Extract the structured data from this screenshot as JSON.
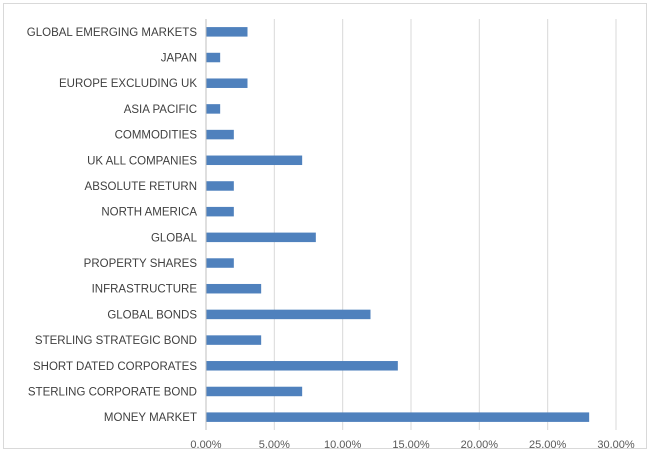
{
  "chart_data": {
    "type": "bar",
    "orientation": "horizontal",
    "title": "",
    "xlabel": "",
    "ylabel": "",
    "categories": [
      "GLOBAL  EMERGING MARKETS",
      "JAPAN",
      "EUROPE EXCLUDING UK",
      "ASIA PACIFIC",
      "COMMODITIES",
      "UK ALL COMPANIES",
      "ABSOLUTE RETURN",
      "NORTH AMERICA",
      "GLOBAL",
      "PROPERTY SHARES",
      "INFRASTRUCTURE",
      "GLOBAL BONDS",
      "STERLING STRATEGIC BOND",
      "SHORT DATED CORPORATES",
      "STERLING CORPORATE BOND",
      "MONEY MARKET"
    ],
    "values": [
      0.03,
      0.01,
      0.03,
      0.01,
      0.02,
      0.07,
      0.02,
      0.02,
      0.08,
      0.02,
      0.04,
      0.12,
      0.04,
      0.14,
      0.07,
      0.28
    ],
    "xlim": [
      0,
      0.3
    ],
    "x_ticks": [
      0,
      0.05,
      0.1,
      0.15,
      0.2,
      0.25,
      0.3
    ],
    "x_tick_labels": [
      "0.00%",
      "5.00%",
      "10.00%",
      "15.00%",
      "20.00%",
      "25.00%",
      "30.00%"
    ],
    "grid": "vertical",
    "legend": "none",
    "bar_color": "#4f81bd"
  }
}
